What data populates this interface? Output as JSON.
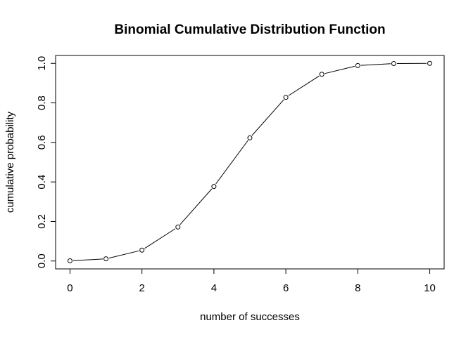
{
  "chart_data": {
    "type": "line",
    "title": "Binomial Cumulative Distribution Function",
    "xlabel": "number of successes",
    "ylabel": "cumulative probability",
    "x": [
      0,
      1,
      2,
      3,
      4,
      5,
      6,
      7,
      8,
      9,
      10
    ],
    "y": [
      0.001,
      0.011,
      0.055,
      0.172,
      0.377,
      0.623,
      0.828,
      0.945,
      0.989,
      0.999,
      1.0
    ],
    "xlim": [
      -0.4,
      10.4
    ],
    "ylim": [
      -0.04,
      1.04
    ],
    "xticks": [
      0,
      2,
      4,
      6,
      8,
      10
    ],
    "xtick_labels": [
      "0",
      "2",
      "4",
      "6",
      "8",
      "10"
    ],
    "yticks": [
      0.0,
      0.2,
      0.4,
      0.6,
      0.8,
      1.0
    ],
    "ytick_labels": [
      "0.0",
      "0.2",
      "0.4",
      "0.6",
      "0.8",
      "1.0"
    ],
    "marker": "open-circle",
    "line_color": "#000000",
    "grid": false,
    "legend": "none"
  }
}
